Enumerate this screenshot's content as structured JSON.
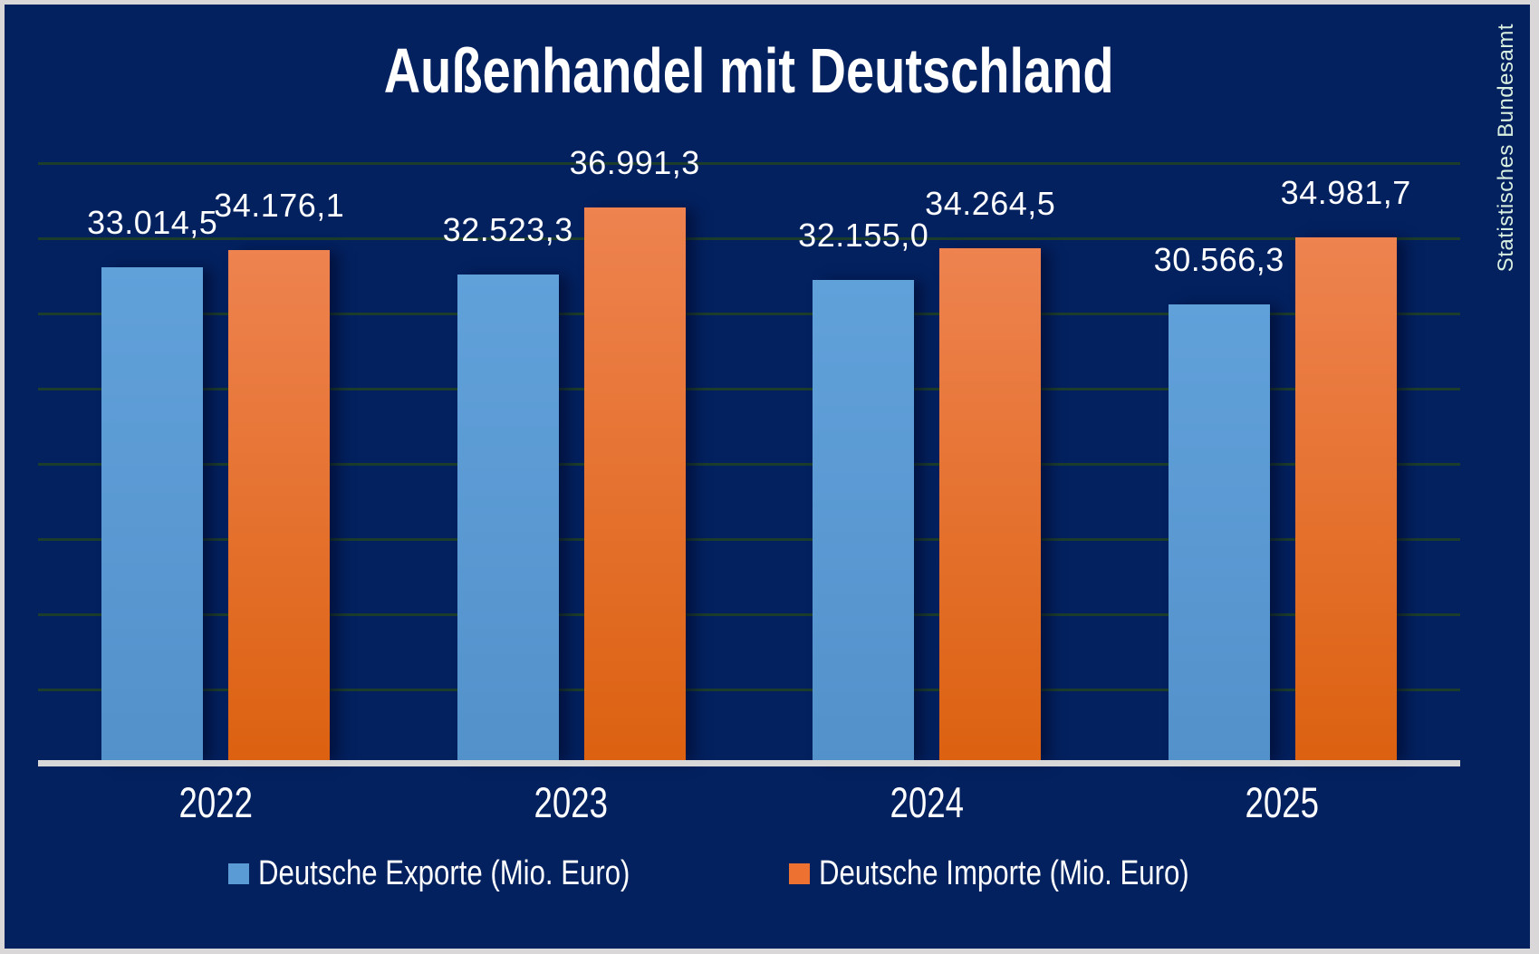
{
  "title": "Außenhandel mit Deutschland",
  "source": "Statistisches Bundesamt",
  "colors": {
    "background": "#03215f",
    "export_blue": "#5B9BD5",
    "import_orange": "#ED7D31",
    "gridline": "#1d3d2c",
    "axis_line": "#d8d8d8",
    "text": "#ffffff",
    "source_text": "#d9efdf",
    "frame_border": "#d9d7d8"
  },
  "legend": [
    {
      "label": "Deutsche Exporte (Mio. Euro)",
      "color": "#5B9BD5"
    },
    {
      "label": "Deutsche Importe (Mio. Euro)",
      "color": "#ED7D31"
    }
  ],
  "chart_data": {
    "type": "bar",
    "title": "Außenhandel mit Deutschland",
    "categories": [
      "2022",
      "2023",
      "2024",
      "2025"
    ],
    "series": [
      {
        "name": "Deutsche Exporte (Mio. Euro)",
        "color": "#5B9BD5",
        "values": [
          33014.5,
          32523.3,
          32155.0,
          30566.3
        ],
        "labels": [
          "33.014,5",
          "32.523,3",
          "32.155,0",
          "30.566,3"
        ]
      },
      {
        "name": "Deutsche Importe (Mio. Euro)",
        "color": "#ED7D31",
        "values": [
          34176.1,
          36991.3,
          34264.5,
          34981.7
        ],
        "labels": [
          "34.176,1",
          "36.991,3",
          "34.264,5",
          "34.981,7"
        ]
      }
    ],
    "xlabel": "",
    "ylabel": "",
    "ylim": [
      0,
      40000
    ],
    "gridline_interval": 5000,
    "grid": true,
    "y_axis_visible": false,
    "legend_position": "bottom",
    "annotation_source": "Statistisches Bundesamt"
  }
}
